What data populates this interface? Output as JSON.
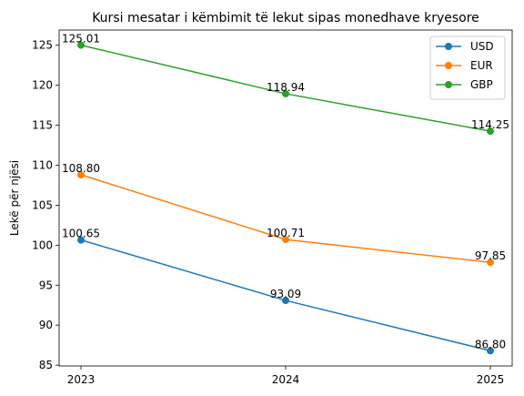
{
  "chart_data": {
    "type": "line",
    "title": "Kursi mesatar i këmbimit të lekut sipas monedhave kryesore",
    "xlabel": "",
    "ylabel": "Lekë për njësi",
    "categories": [
      "2023",
      "2024",
      "2025"
    ],
    "ylim": [
      84.9,
      126.9
    ],
    "yticks": [
      85,
      90,
      95,
      100,
      105,
      110,
      115,
      120,
      125
    ],
    "grid": false,
    "legend_position": "top-right",
    "series": [
      {
        "name": "USD",
        "color": "#1f77b4",
        "values": [
          100.65,
          93.09,
          86.8
        ],
        "labels": [
          "100.65",
          "93.09",
          "86.80"
        ]
      },
      {
        "name": "EUR",
        "color": "#ff7f0e",
        "values": [
          108.8,
          100.71,
          97.85
        ],
        "labels": [
          "108.80",
          "100.71",
          "97.85"
        ]
      },
      {
        "name": "GBP",
        "color": "#2ca02c",
        "values": [
          125.01,
          118.94,
          114.25
        ],
        "labels": [
          "125.01",
          "118.94",
          "114.25"
        ]
      }
    ]
  }
}
